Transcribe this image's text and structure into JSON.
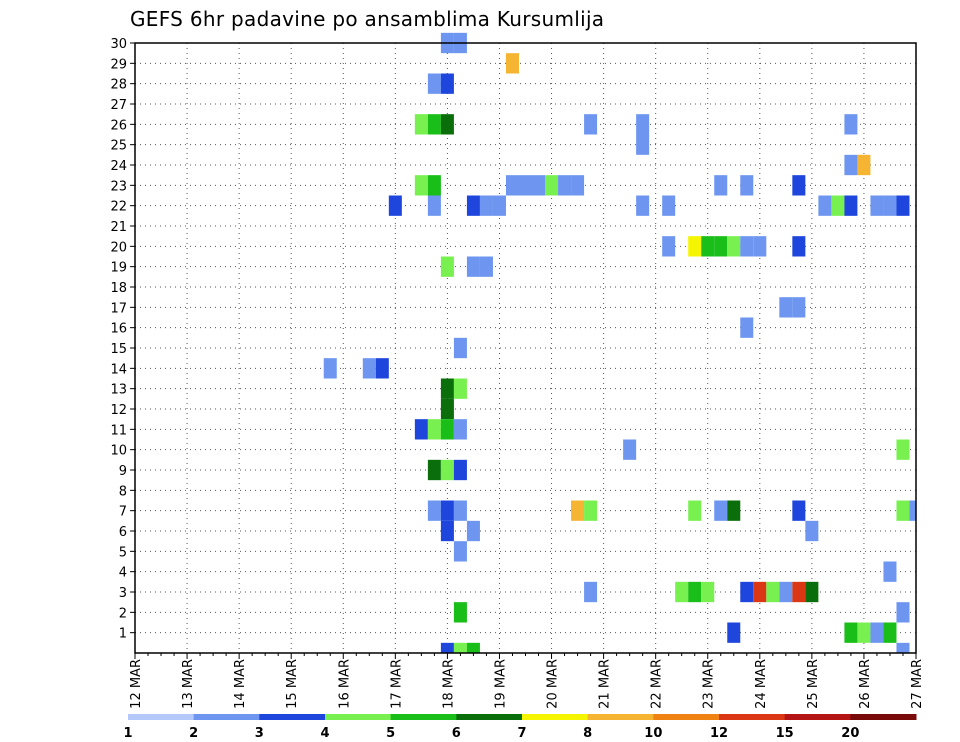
{
  "chart_data": {
    "type": "heatmap",
    "title": "GEFS 6hr padavine po ansamblima Kursumlija",
    "xlabel": "",
    "ylabel": "",
    "x_tick_labels": [
      "12 MAR",
      "13 MAR",
      "14 MAR",
      "15 MAR",
      "16 MAR",
      "17 MAR",
      "18 MAR",
      "19 MAR",
      "20 MAR",
      "21 MAR",
      "22 MAR",
      "23 MAR",
      "24 MAR",
      "25 MAR",
      "26 MAR",
      "27 MAR"
    ],
    "xlim": [
      0,
      60
    ],
    "steps_per_day": 4,
    "y_tick_labels": [
      "1",
      "2",
      "3",
      "4",
      "5",
      "6",
      "7",
      "8",
      "9",
      "10",
      "11",
      "12",
      "13",
      "14",
      "15",
      "16",
      "17",
      "18",
      "19",
      "20",
      "21",
      "22",
      "23",
      "24",
      "25",
      "26",
      "27",
      "28",
      "29",
      "30"
    ],
    "ylim": [
      0,
      30
    ],
    "legend": {
      "labels": [
        "1",
        "2",
        "3",
        "4",
        "5",
        "6",
        "7",
        "8",
        "10",
        "12",
        "15",
        "20"
      ],
      "colors": [
        "#b4c8fa",
        "#6e96f0",
        "#1e46dc",
        "#78f050",
        "#19be19",
        "#0a6e0a",
        "#f5f500",
        "#f5b432",
        "#f08214",
        "#dc3714",
        "#b41414",
        "#780a0a"
      ]
    },
    "cells": [
      [
        24,
        30,
        1
      ],
      [
        25,
        30,
        1
      ],
      [
        29,
        29,
        7
      ],
      [
        23,
        28,
        1
      ],
      [
        24,
        28,
        2
      ],
      [
        22,
        26,
        3
      ],
      [
        23,
        26,
        4
      ],
      [
        24,
        26,
        5
      ],
      [
        35,
        26,
        1
      ],
      [
        39,
        26,
        1
      ],
      [
        55,
        26,
        1
      ],
      [
        39,
        25,
        1
      ],
      [
        55,
        24,
        1
      ],
      [
        56,
        24,
        7
      ],
      [
        22,
        23,
        3
      ],
      [
        23,
        23,
        4
      ],
      [
        29,
        23,
        1
      ],
      [
        30,
        23,
        1
      ],
      [
        31,
        23,
        1
      ],
      [
        32,
        23,
        3
      ],
      [
        33,
        23,
        1
      ],
      [
        34,
        23,
        1
      ],
      [
        45,
        23,
        1
      ],
      [
        47,
        23,
        1
      ],
      [
        51,
        23,
        2
      ],
      [
        20,
        22,
        2
      ],
      [
        23,
        22,
        1
      ],
      [
        26,
        22,
        2
      ],
      [
        27,
        22,
        1
      ],
      [
        28,
        22,
        1
      ],
      [
        39,
        22,
        1
      ],
      [
        41,
        22,
        1
      ],
      [
        53,
        22,
        1
      ],
      [
        54,
        22,
        3
      ],
      [
        55,
        22,
        2
      ],
      [
        57,
        22,
        1
      ],
      [
        58,
        22,
        1
      ],
      [
        59,
        22,
        2
      ],
      [
        41,
        20,
        1
      ],
      [
        43,
        20,
        6
      ],
      [
        44,
        20,
        4
      ],
      [
        45,
        20,
        4
      ],
      [
        46,
        20,
        3
      ],
      [
        47,
        20,
        1
      ],
      [
        48,
        20,
        1
      ],
      [
        51,
        20,
        2
      ],
      [
        24,
        19,
        3
      ],
      [
        26,
        19,
        1
      ],
      [
        27,
        19,
        1
      ],
      [
        50,
        17,
        1
      ],
      [
        51,
        17,
        1
      ],
      [
        47,
        16,
        1
      ],
      [
        25,
        15,
        1
      ],
      [
        15,
        14,
        1
      ],
      [
        18,
        14,
        1
      ],
      [
        19,
        14,
        2
      ],
      [
        24,
        13,
        5
      ],
      [
        25,
        13,
        3
      ],
      [
        24,
        12,
        5
      ],
      [
        22,
        11,
        2
      ],
      [
        23,
        11,
        3
      ],
      [
        24,
        11,
        4
      ],
      [
        25,
        11,
        1
      ],
      [
        38,
        10,
        1
      ],
      [
        59,
        10,
        3
      ],
      [
        23,
        9,
        5
      ],
      [
        24,
        9,
        3
      ],
      [
        25,
        9,
        2
      ],
      [
        23,
        7,
        1
      ],
      [
        24,
        7,
        2
      ],
      [
        25,
        7,
        1
      ],
      [
        34,
        7,
        7
      ],
      [
        35,
        7,
        3
      ],
      [
        43,
        7,
        3
      ],
      [
        45,
        7,
        1
      ],
      [
        46,
        7,
        5
      ],
      [
        51,
        7,
        2
      ],
      [
        59,
        7,
        3
      ],
      [
        60,
        7,
        1
      ],
      [
        24,
        6,
        2
      ],
      [
        26,
        6,
        1
      ],
      [
        52,
        6,
        1
      ],
      [
        25,
        5,
        1
      ],
      [
        58,
        4,
        1
      ],
      [
        35,
        3,
        1
      ],
      [
        42,
        3,
        3
      ],
      [
        43,
        3,
        4
      ],
      [
        44,
        3,
        3
      ],
      [
        47,
        3,
        2
      ],
      [
        48,
        3,
        9
      ],
      [
        49,
        3,
        3
      ],
      [
        50,
        3,
        1
      ],
      [
        51,
        3,
        9
      ],
      [
        52,
        3,
        5
      ],
      [
        25,
        2,
        4
      ],
      [
        59,
        2,
        1
      ],
      [
        46,
        1,
        2
      ],
      [
        55,
        1,
        4
      ],
      [
        56,
        1,
        3
      ],
      [
        57,
        1,
        1
      ],
      [
        58,
        1,
        4
      ],
      [
        24,
        0,
        2
      ],
      [
        25,
        0,
        3
      ],
      [
        26,
        0,
        4
      ],
      [
        59,
        0,
        1
      ]
    ]
  }
}
